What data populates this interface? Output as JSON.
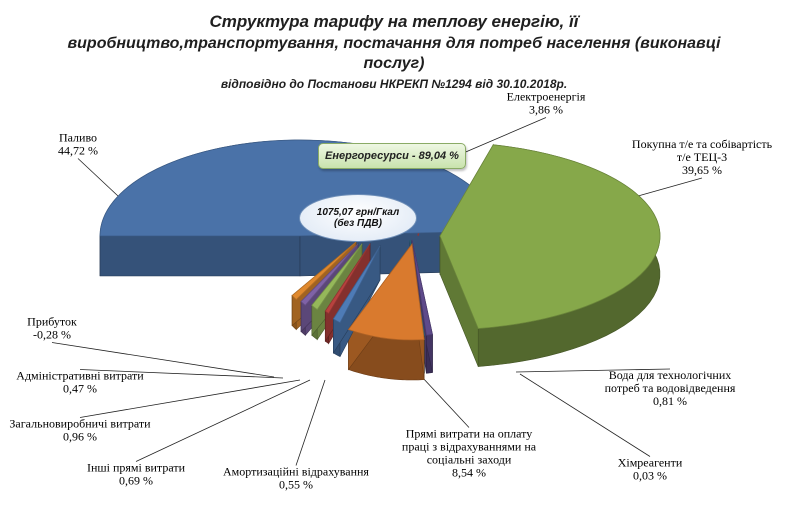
{
  "title_lines": [
    "Структура тарифу на теплову енергію, її",
    "виробництво,транспортування,  постачання для потреб населення  (виконавці",
    "послуг)"
  ],
  "subtitle": "відповідно до Постанови НКРЕКП №1294 від 30.10.2018р.",
  "callouts": {
    "energy_resources": "Енергоресурси - 89,04 %",
    "total_line1": "1075,07 грн/Гкал",
    "total_line2": "(без ПДВ)"
  },
  "colors": {
    "fuel": "#4a72a8",
    "electricity": "#b8423e",
    "purchased_heat": "#86a84a",
    "water": "#5e4a8a",
    "chemicals": "#2f7f95",
    "labor": "#d97a2e",
    "depreciation": "#4e7bb6",
    "other_direct": "#b8423e",
    "general_production": "#95b85a",
    "administrative": "#7f62a6",
    "profit": "#e0892e"
  },
  "chart_data": {
    "type": "pie",
    "style": "3d-exploded",
    "title": "Структура тарифу на теплову енергію, її виробництво,транспортування,  постачання для потреб населення  (виконавці послуг)",
    "subtitle": "відповідно до Постанови НКРЕКП №1294 від 30.10.2018р.",
    "slices": [
      {
        "key": "electricity",
        "label": "Електроенергія",
        "value_label": "3,86 %",
        "value": 3.86
      },
      {
        "key": "purchased_heat",
        "label": "Покупна т/е та собівартість т/е ТЕЦ-3",
        "value_label": "39,65 %",
        "value": 39.65
      },
      {
        "key": "water",
        "label": "Вода для технологічних потреб  та водовідведення",
        "value_label": "0,81 %",
        "value": 0.81
      },
      {
        "key": "chemicals",
        "label": "Хімреагенти",
        "value_label": "0,03 %",
        "value": 0.03
      },
      {
        "key": "labor",
        "label": "Прямі витрати на оплату праці з відрахуваннями на соціальні заходи",
        "value_label": "8,54 %",
        "value": 8.54
      },
      {
        "key": "depreciation",
        "label": "Амортизаційні відрахування",
        "value_label": "0,55 %",
        "value": 0.55
      },
      {
        "key": "other_direct",
        "label": "Інші прямі витрати",
        "value_label": "0,69 %",
        "value": 0.69
      },
      {
        "key": "general_production",
        "label": "Загальновиробничі витрати",
        "value_label": "0,96 %",
        "value": 0.96
      },
      {
        "key": "administrative",
        "label": "Адміністративні витрати",
        "value_label": "0,47 %",
        "value": 0.47
      },
      {
        "key": "profit",
        "label": "Прибуток",
        "value_label": "-0,28 %",
        "value": -0.28
      },
      {
        "key": "fuel",
        "label": "Паливо",
        "value_label": "44,72 %",
        "value": 44.72
      }
    ]
  }
}
